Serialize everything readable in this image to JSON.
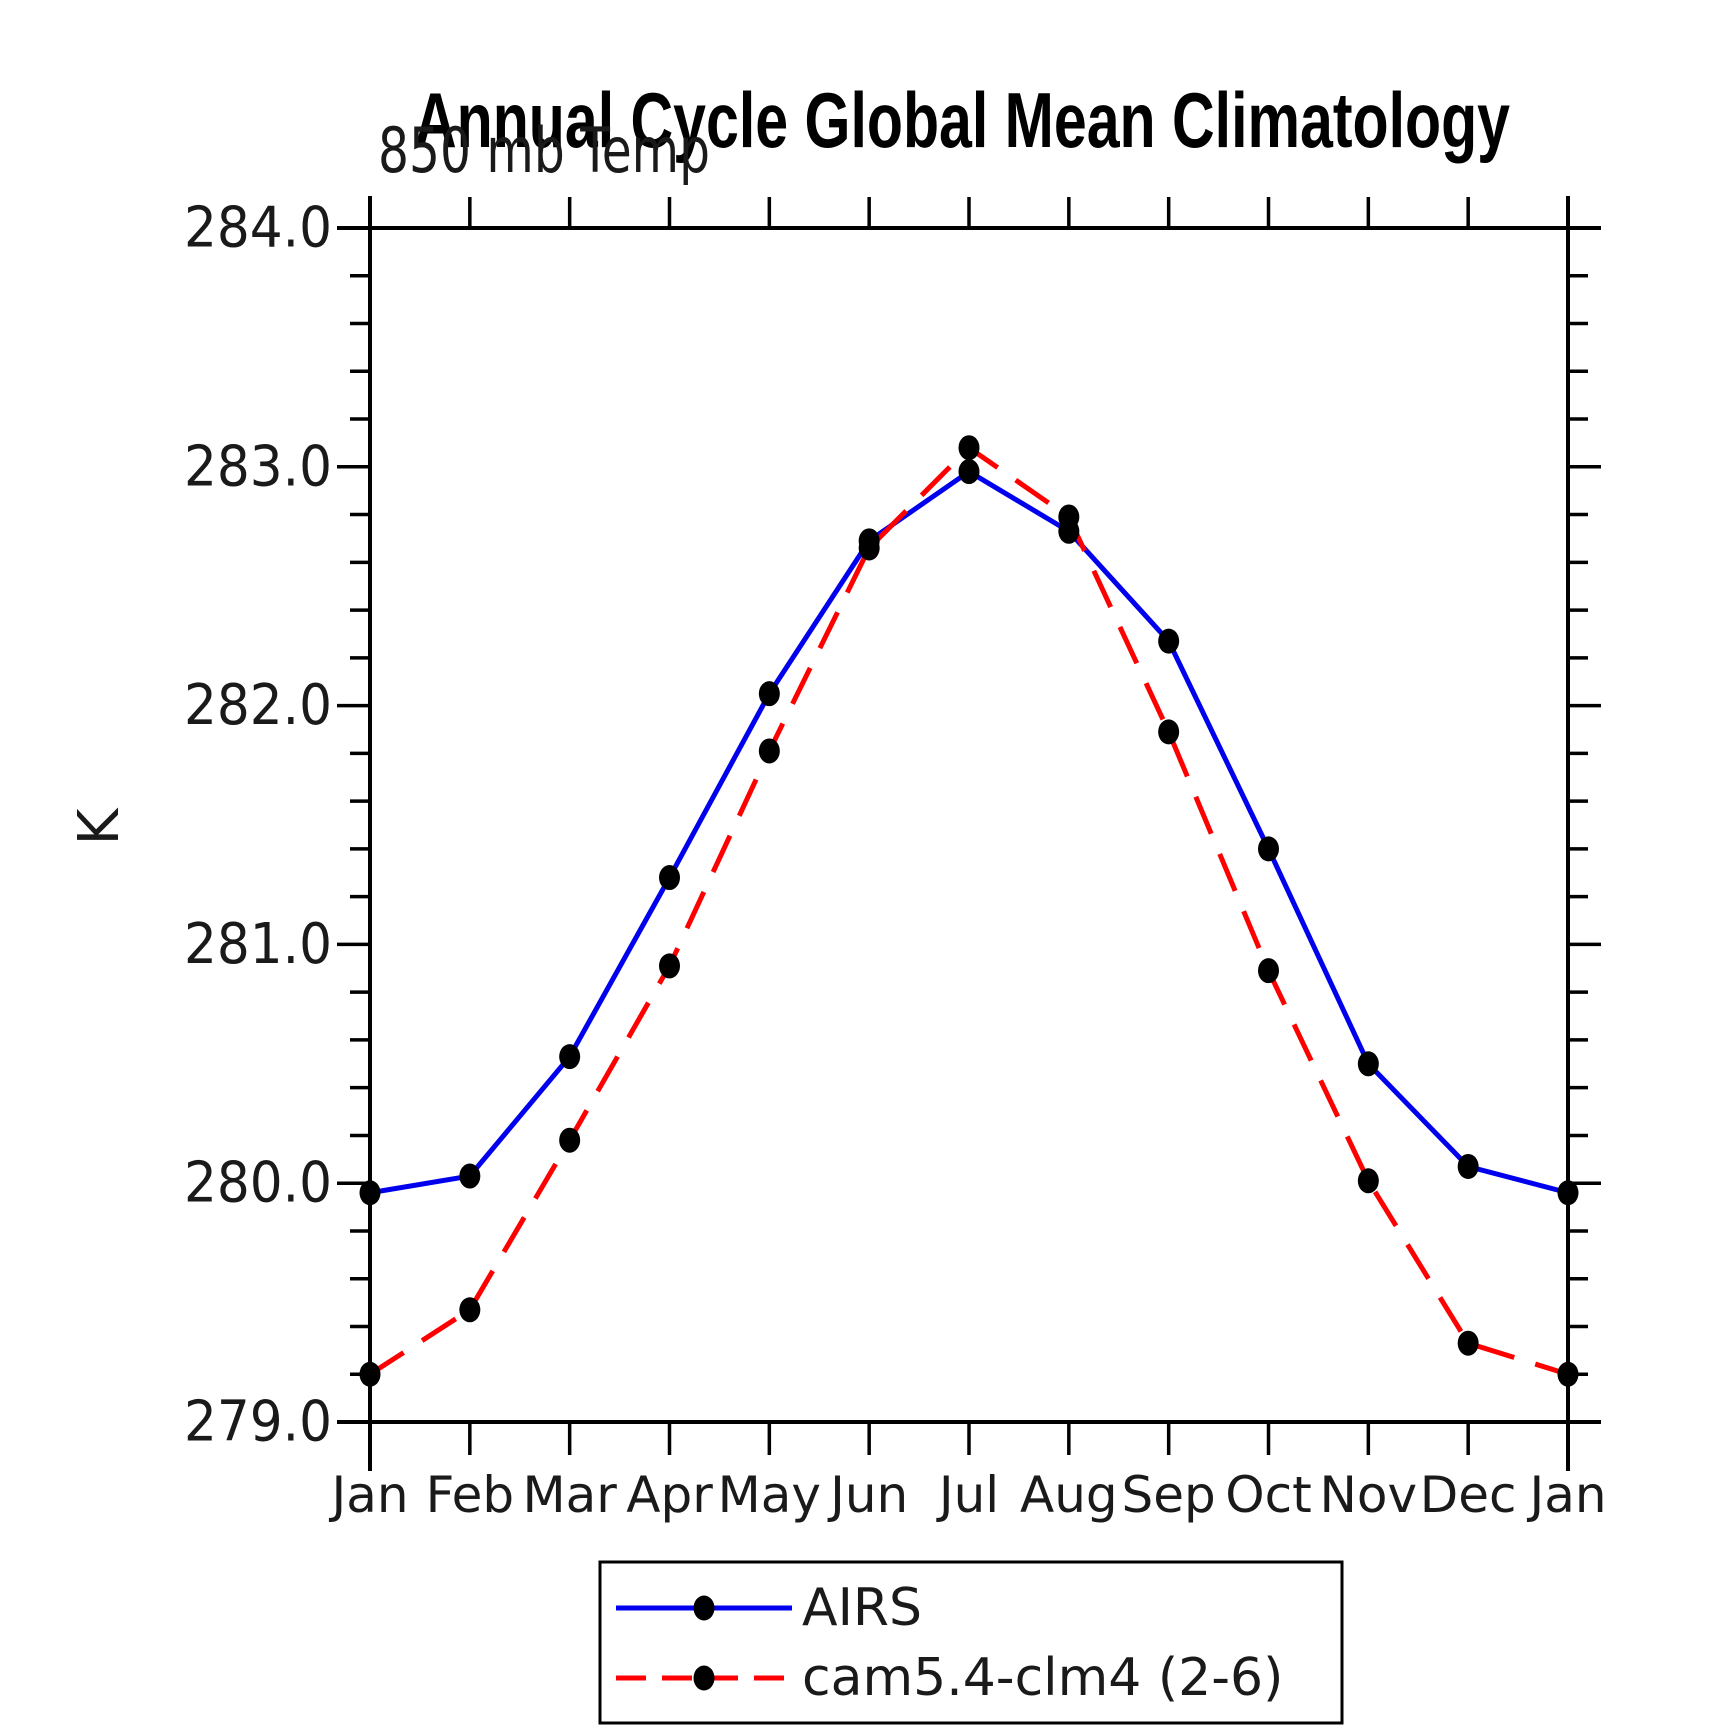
{
  "chart_data": {
    "type": "line",
    "title": "Annual Cycle Global Mean Climatology",
    "subtitle": "850 mb Temp",
    "ylabel": "K",
    "xlabel": "",
    "ylim": [
      279.0,
      284.0
    ],
    "ytick_major_interval": 1.0,
    "ytick_minor_interval": 0.2,
    "ytick_labels": [
      "279.0",
      "280.0",
      "281.0",
      "282.0",
      "283.0",
      "284.0"
    ],
    "grid": false,
    "frame": "boxed-with-outward-ticks",
    "legend_position": "bottom-center",
    "categories": [
      "Jan",
      "Feb",
      "Mar",
      "Apr",
      "May",
      "Jun",
      "Jul",
      "Aug",
      "Sep",
      "Oct",
      "Nov",
      "Dec",
      "Jan"
    ],
    "series": [
      {
        "name": "AIRS",
        "color": "#0000ee",
        "line_style": "solid",
        "marker": "filled-circle",
        "marker_color": "#000000",
        "values": [
          279.96,
          280.03,
          280.53,
          281.28,
          282.05,
          282.69,
          282.98,
          282.73,
          282.27,
          281.4,
          280.5,
          280.07,
          279.96
        ]
      },
      {
        "name": "cam5.4-clm4 (2-6)",
        "color": "#ff0000",
        "line_style": "dashed",
        "marker": "filled-circle",
        "marker_color": "#000000",
        "values": [
          279.2,
          279.47,
          280.18,
          280.91,
          281.81,
          282.66,
          283.08,
          282.79,
          281.89,
          280.89,
          280.01,
          279.33,
          279.2
        ]
      }
    ],
    "axis_color": "#000000",
    "background_color": "#ffffff"
  }
}
